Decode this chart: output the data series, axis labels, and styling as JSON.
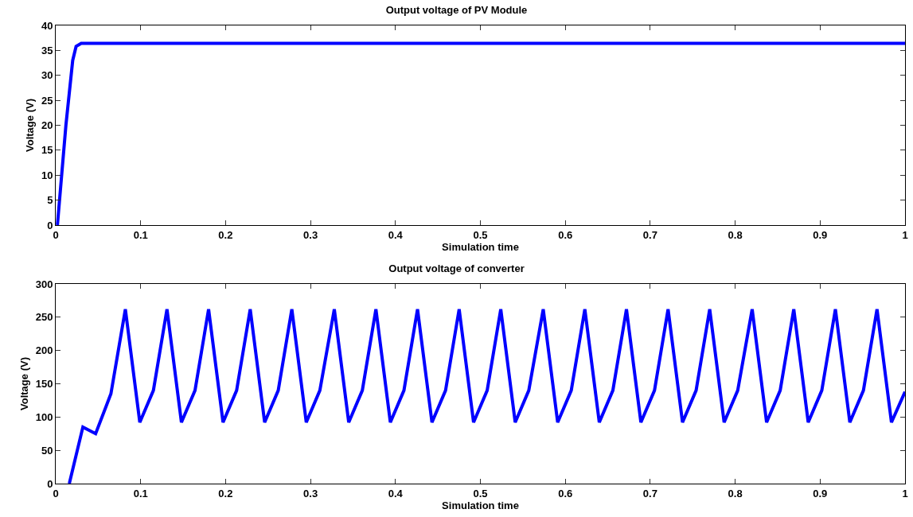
{
  "chart_data": [
    {
      "type": "line",
      "title": "Output voltage of PV Module",
      "xlabel": "Simulation time",
      "ylabel": "Voltage (V)",
      "series": [
        {
          "color": "#0000ff",
          "x": [
            0.002,
            0.012,
            0.02,
            0.024,
            0.03,
            1
          ],
          "values": [
            0,
            20,
            33,
            35.8,
            36.4,
            36.4
          ]
        }
      ],
      "xlim": [
        0,
        1
      ],
      "xticks": [
        0,
        0.1,
        0.2,
        0.3,
        0.4,
        0.5,
        0.6,
        0.7,
        0.8,
        0.9,
        1
      ],
      "ylim": [
        0,
        40
      ],
      "yticks": [
        0,
        5,
        10,
        15,
        20,
        25,
        30,
        35,
        40
      ],
      "grid": false,
      "marker": "none",
      "line_style": "solid"
    },
    {
      "type": "line",
      "title": "Output voltage of converter",
      "xlabel": "Simulation time",
      "ylabel": "Voltage (V)",
      "series": [
        {
          "color": "#0000ff",
          "x": [
            0.016,
            0.032,
            0.047,
            0.065,
            0.082,
            0.099,
            0.115,
            0.131,
            0.148,
            0.164,
            0.18,
            0.197,
            0.213,
            0.229,
            0.246,
            0.262,
            0.278,
            0.295,
            0.311,
            0.328,
            0.345,
            0.361,
            0.377,
            0.394,
            0.41,
            0.426,
            0.443,
            0.459,
            0.475,
            0.492,
            0.508,
            0.524,
            0.541,
            0.557,
            0.574,
            0.591,
            0.607,
            0.623,
            0.64,
            0.656,
            0.672,
            0.689,
            0.705,
            0.721,
            0.738,
            0.754,
            0.77,
            0.787,
            0.803,
            0.82,
            0.837,
            0.853,
            0.869,
            0.886,
            0.902,
            0.918,
            0.935,
            0.951,
            0.967,
            0.984,
            1
          ],
          "values": [
            0,
            85,
            75,
            135,
            262,
            92,
            140,
            262,
            92,
            140,
            262,
            92,
            140,
            262,
            92,
            140,
            262,
            92,
            140,
            262,
            92,
            140,
            262,
            92,
            140,
            262,
            92,
            140,
            262,
            92,
            140,
            262,
            92,
            140,
            262,
            92,
            140,
            262,
            92,
            140,
            262,
            92,
            140,
            262,
            92,
            140,
            262,
            92,
            140,
            262,
            92,
            140,
            262,
            92,
            140,
            262,
            92,
            140,
            262,
            92,
            138
          ]
        }
      ],
      "xlim": [
        0,
        1
      ],
      "xticks": [
        0,
        0.1,
        0.2,
        0.3,
        0.4,
        0.5,
        0.6,
        0.7,
        0.8,
        0.9,
        1
      ],
      "ylim": [
        0,
        300
      ],
      "yticks": [
        0,
        50,
        100,
        150,
        200,
        250,
        300
      ],
      "grid": false,
      "marker": "none",
      "line_style": "solid"
    }
  ]
}
